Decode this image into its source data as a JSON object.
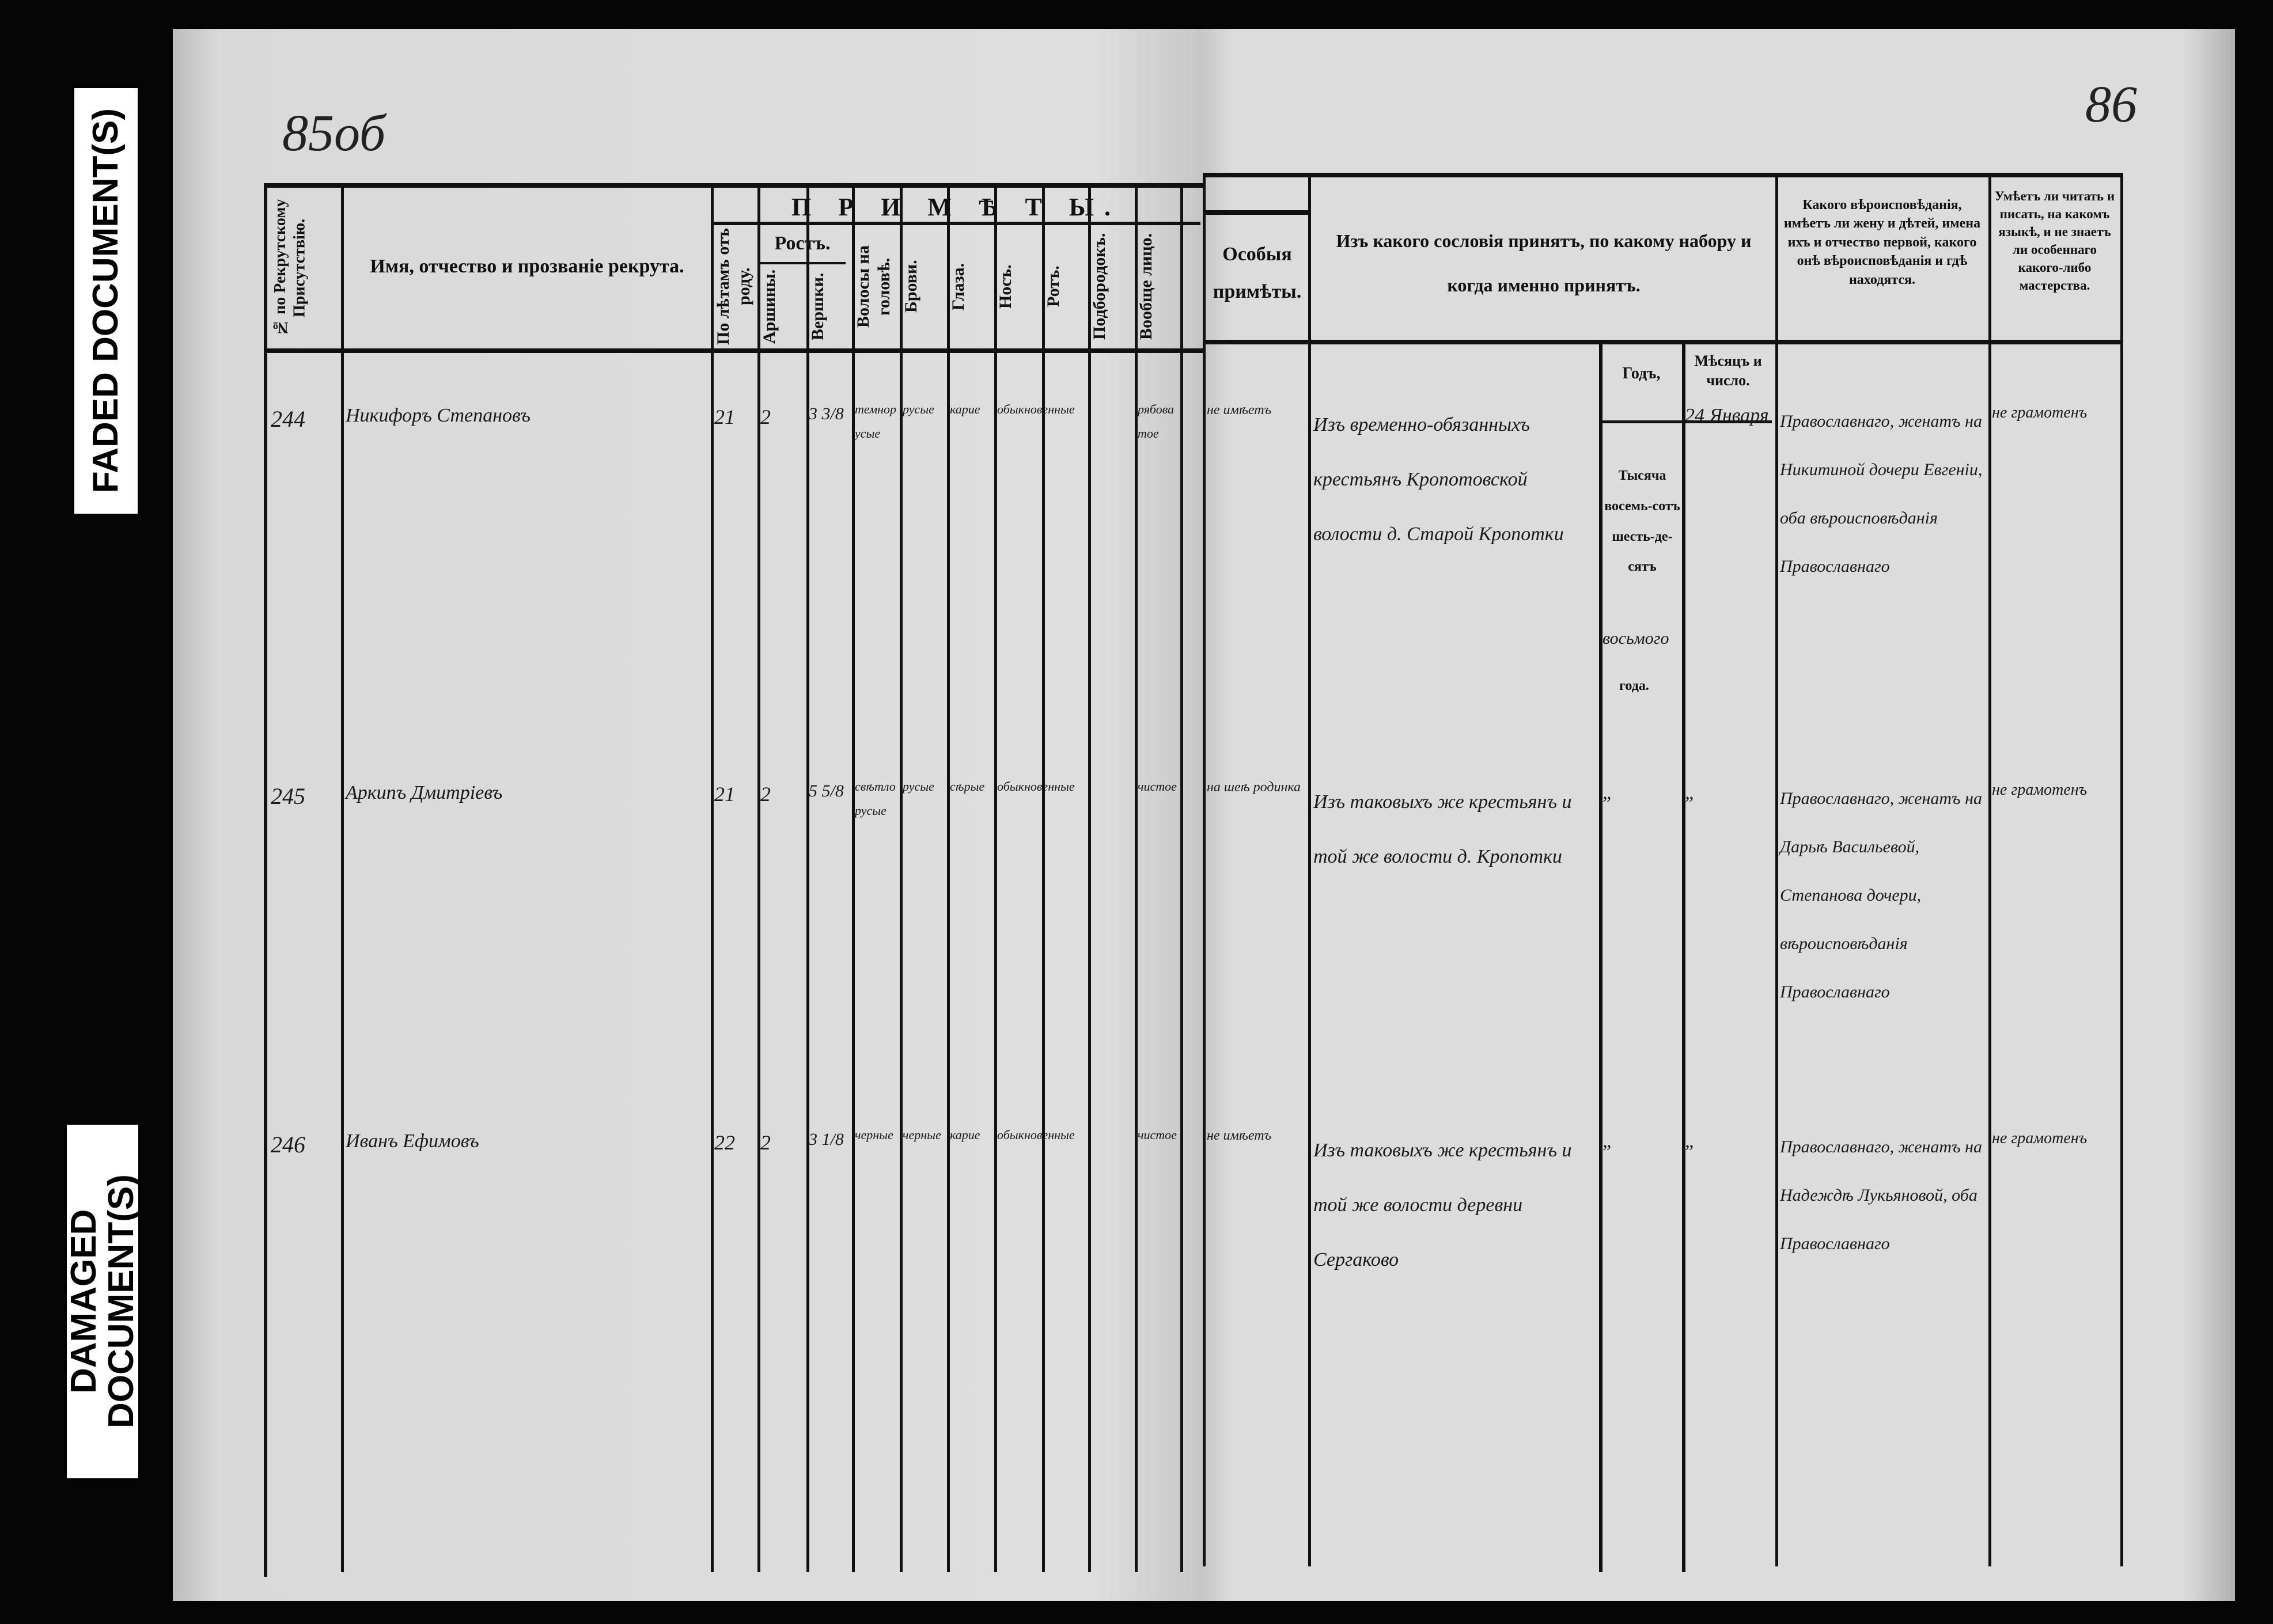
{
  "labels": {
    "faded": "FADED DOCUMENT(S)",
    "damaged": "DAMAGED DOCUMENT(S)"
  },
  "folio": {
    "left": "85об",
    "right": "86"
  },
  "header": {
    "number": "№ по Рекрутскому Присутствію.",
    "name": "Имя, отчество и прозваніе рекрута.",
    "primety": "П Р И М Ѣ Т Ы.",
    "age": "По лѣтамъ отъ роду.",
    "height": "Ростъ.",
    "arshiny": "Аршины.",
    "vershki": "Вершки.",
    "hair": "Волосы на головѣ.",
    "brows": "Брови.",
    "eyes": "Глаза.",
    "nose": "Носъ.",
    "mouth": "Ротъ.",
    "chin": "Подбородокъ.",
    "face": "Вообще лицо.",
    "special": "Особыя примѣты.",
    "origin": "Изъ какого сословія принятъ, по какому набору и когда именно принятъ.",
    "year": "Годъ,",
    "month": "Мѣсяцъ и число.",
    "year_printed": "Тысяча восемь-сотъ шесть-де-сятъ",
    "year_hand": "восьмого",
    "year_suffix": "года.",
    "religion": "Какого вѣроисповѣданія, имѣетъ ли жену и дѣтей, имена ихъ и отчество первой, какого онѣ вѣроисповѣданія и гдѣ находятся.",
    "literacy": "Умѣетъ ли читать и писать, на какомъ языкѣ, и не знаетъ ли особеннаго какого-либо мастерства."
  },
  "rows": [
    {
      "no": "244",
      "name": "Никифоръ Степановъ",
      "age": "21",
      "arsh": "2",
      "versh": "3 3/8",
      "hair": "темнорусые",
      "brows": "русые",
      "eyes": "карие",
      "nose_mouth": "обыкновенные",
      "face": "рябоватое",
      "special": "не имѣетъ",
      "origin": "Изъ временно-обязанныхъ крестьянъ Кропотовской волости д. Старой Кропотки",
      "month": "24 Января",
      "religion": "Православнаго, женатъ на Никитиной дочери Евгеніи, оба вѣроисповѣданія Православнаго",
      "literacy": "не грамотенъ"
    },
    {
      "no": "245",
      "name": "Аркипъ Дмитріевъ",
      "age": "21",
      "arsh": "2",
      "versh": "5 5/8",
      "hair": "свѣтлорусые",
      "brows": "русые",
      "eyes": "сѣрые",
      "nose_mouth": "обыкновенные",
      "face": "чистое",
      "special": "на шеѣ родинка",
      "origin": "Изъ таковыхъ же крестьянъ и той же волости д. Кропотки",
      "year": "„",
      "month": "„",
      "religion": "Православнаго, женатъ на Дарьѣ Васильевой, Степанова дочери, вѣроисповѣданія Православнаго",
      "literacy": "не грамотенъ"
    },
    {
      "no": "246",
      "name": "Иванъ Ефимовъ",
      "age": "22",
      "arsh": "2",
      "versh": "3 1/8",
      "hair": "черные",
      "brows": "черные",
      "eyes": "карие",
      "nose_mouth": "обыкновенные",
      "face": "чистое",
      "special": "не имѣетъ",
      "origin": "Изъ таковыхъ же крестьянъ и той же волости деревни Сергаково",
      "year": "„",
      "month": "„",
      "religion": "Православнаго, женатъ на Надеждѣ Лукьяновой, оба Православнаго",
      "literacy": "не грамотенъ"
    }
  ]
}
